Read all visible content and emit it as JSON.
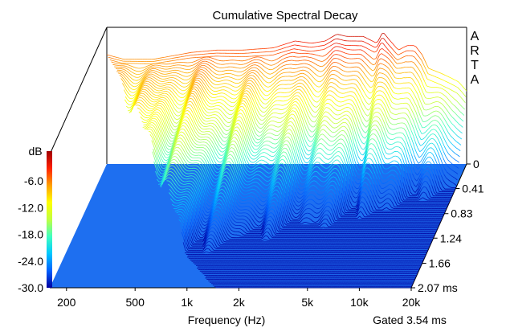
{
  "chart_data": {
    "type": "waterfall",
    "title": "Cumulative Spectral Decay",
    "xlabel": "Frequency (Hz)",
    "xscale": "log",
    "x_ticks": [
      200,
      500,
      1000,
      2000,
      5000,
      10000,
      20000
    ],
    "x_tick_labels": [
      "200",
      "500",
      "1k",
      "2k",
      "5k",
      "10k",
      "20k"
    ],
    "x_range": [
      160,
      20000
    ],
    "ylabel": "dB",
    "y_ticks": [
      -6.0,
      -12.0,
      -18.0,
      -24.0,
      -30.0
    ],
    "y_tick_labels": [
      "-6.0",
      "-12.0",
      "-18.0",
      "-24.0",
      "-30.0"
    ],
    "y_range": [
      -30,
      0
    ],
    "z_label": "ms",
    "z_ticks": [
      0,
      0.41,
      0.83,
      1.24,
      1.66,
      2.07
    ],
    "z_tick_labels": [
      "0",
      "0.41",
      "0.83",
      "1.24",
      "1.66",
      "2.07 ms"
    ],
    "z_range": [
      0,
      2.07
    ],
    "gate_note": "Gated 3.54 ms",
    "watermark": [
      "A",
      "R",
      "T",
      "A"
    ],
    "colormap": [
      "#0000a0",
      "#0060ff",
      "#00c8ff",
      "#40ffc0",
      "#c0ff40",
      "#ffff00",
      "#ffa000",
      "#ff2000",
      "#a00000"
    ],
    "floor_color": "#1e6ff0",
    "response_profile": {
      "freq_hz": [
        160,
        200,
        300,
        500,
        700,
        1000,
        1500,
        2000,
        2500,
        3000,
        3500,
        4000,
        5000,
        6000,
        6500,
        7000,
        8000,
        9000,
        10000,
        11000,
        12000,
        14000,
        16000,
        18000,
        20000
      ],
      "level_db": [
        -6,
        -7,
        -7,
        -5.5,
        -5,
        -5,
        -4.5,
        -3,
        -3.5,
        -3,
        -1.5,
        -2,
        -2,
        -3.5,
        -1,
        -2.5,
        -5,
        -4,
        -4,
        -6,
        -9,
        -10,
        -11,
        -12,
        -14
      ]
    },
    "decay_slices": 90
  }
}
